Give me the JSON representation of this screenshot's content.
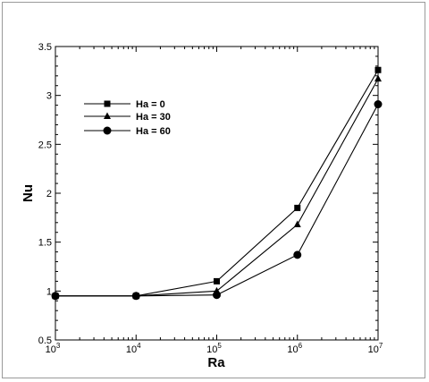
{
  "chart_data": {
    "type": "line",
    "title": "",
    "xlabel": "Ra",
    "ylabel": "Nu",
    "xscale": "log",
    "xlim": [
      1000,
      10000000
    ],
    "ylim": [
      0.5,
      3.5
    ],
    "grid": false,
    "legend": "upper-left",
    "x_ticks": [
      {
        "value": 1000,
        "base": "10",
        "exp": "3"
      },
      {
        "value": 10000,
        "base": "10",
        "exp": "4"
      },
      {
        "value": 100000,
        "base": "10",
        "exp": "5"
      },
      {
        "value": 1000000,
        "base": "10",
        "exp": "6"
      },
      {
        "value": 10000000,
        "base": "10",
        "exp": "7"
      }
    ],
    "y_ticks": [
      {
        "value": 0.5,
        "label": "0.5"
      },
      {
        "value": 1,
        "label": "1"
      },
      {
        "value": 1.5,
        "label": "1.5"
      },
      {
        "value": 2,
        "label": "2"
      },
      {
        "value": 2.5,
        "label": "2.5"
      },
      {
        "value": 3,
        "label": "3"
      },
      {
        "value": 3.5,
        "label": "3.5"
      }
    ],
    "x": [
      1000,
      10000,
      100000,
      1000000,
      10000000
    ],
    "series": [
      {
        "name": "Ha = 0",
        "marker": "square",
        "values": [
          0.95,
          0.95,
          1.1,
          1.85,
          3.26
        ]
      },
      {
        "name": "Ha = 30",
        "marker": "triangle",
        "values": [
          0.95,
          0.95,
          1.0,
          1.68,
          3.17
        ]
      },
      {
        "name": "Ha = 60",
        "marker": "circle",
        "values": [
          0.95,
          0.95,
          0.96,
          1.37,
          2.91
        ]
      }
    ]
  }
}
